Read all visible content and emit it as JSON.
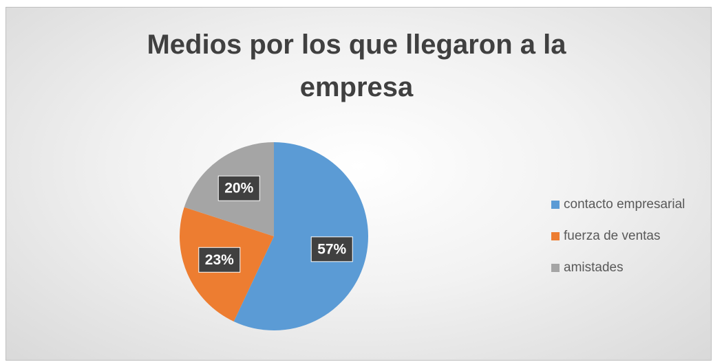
{
  "chart_data": {
    "type": "pie",
    "title": "Medios por los que llegaron a la empresa",
    "categories": [
      "contacto empresarial",
      "fuerza de ventas",
      "amistades"
    ],
    "values": [
      57,
      23,
      20
    ],
    "value_labels": [
      "57%",
      "23%",
      "20%"
    ],
    "colors": [
      "#5b9bd5",
      "#ed7d31",
      "#a5a5a5"
    ],
    "legend": "right"
  }
}
